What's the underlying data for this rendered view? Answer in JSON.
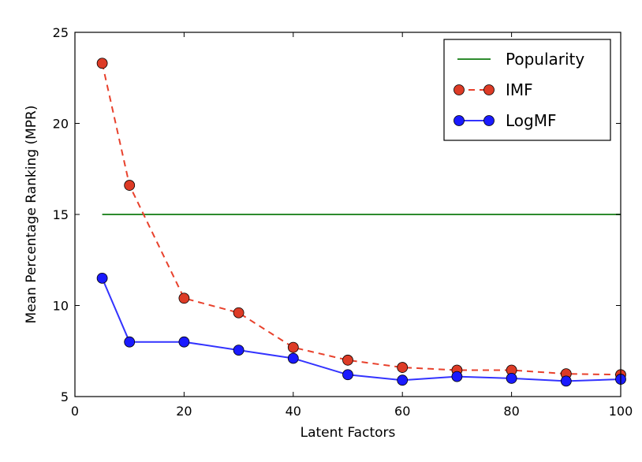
{
  "chart_data": {
    "type": "line",
    "title": "",
    "xlabel": "Latent Factors",
    "ylabel": "Mean Percentage Ranking (MPR)",
    "xlim": [
      0,
      100
    ],
    "ylim": [
      5,
      25
    ],
    "xticks": [
      0,
      20,
      40,
      60,
      80,
      100
    ],
    "yticks": [
      5,
      10,
      15,
      20,
      25
    ],
    "xtick_labels": [
      "0",
      "20",
      "40",
      "60",
      "80",
      "100"
    ],
    "ytick_labels": [
      "5",
      "10",
      "15",
      "20",
      "25"
    ],
    "legend_position": "top-right",
    "series": [
      {
        "name": "Popularity",
        "color": "#2e8b2e",
        "line_style": "solid",
        "marker": "none",
        "x": [
          5,
          100
        ],
        "y": [
          15,
          15
        ]
      },
      {
        "name": "IMF",
        "color": "#e8412c",
        "marker_color": "#dd3b26",
        "line_style": "dashed",
        "marker": "circle",
        "x": [
          5,
          10,
          20,
          30,
          40,
          50,
          60,
          70,
          80,
          90,
          100
        ],
        "y": [
          23.3,
          16.6,
          10.4,
          9.6,
          7.7,
          7.0,
          6.6,
          6.45,
          6.45,
          6.25,
          6.2
        ]
      },
      {
        "name": "LogMF",
        "color": "#3333ff",
        "marker_color": "#1a1aff",
        "line_style": "solid",
        "marker": "circle",
        "x": [
          5,
          10,
          20,
          30,
          40,
          50,
          60,
          70,
          80,
          90,
          100
        ],
        "y": [
          11.5,
          8.0,
          8.0,
          7.55,
          7.1,
          6.2,
          5.9,
          6.1,
          6.0,
          5.85,
          5.95
        ]
      }
    ]
  }
}
